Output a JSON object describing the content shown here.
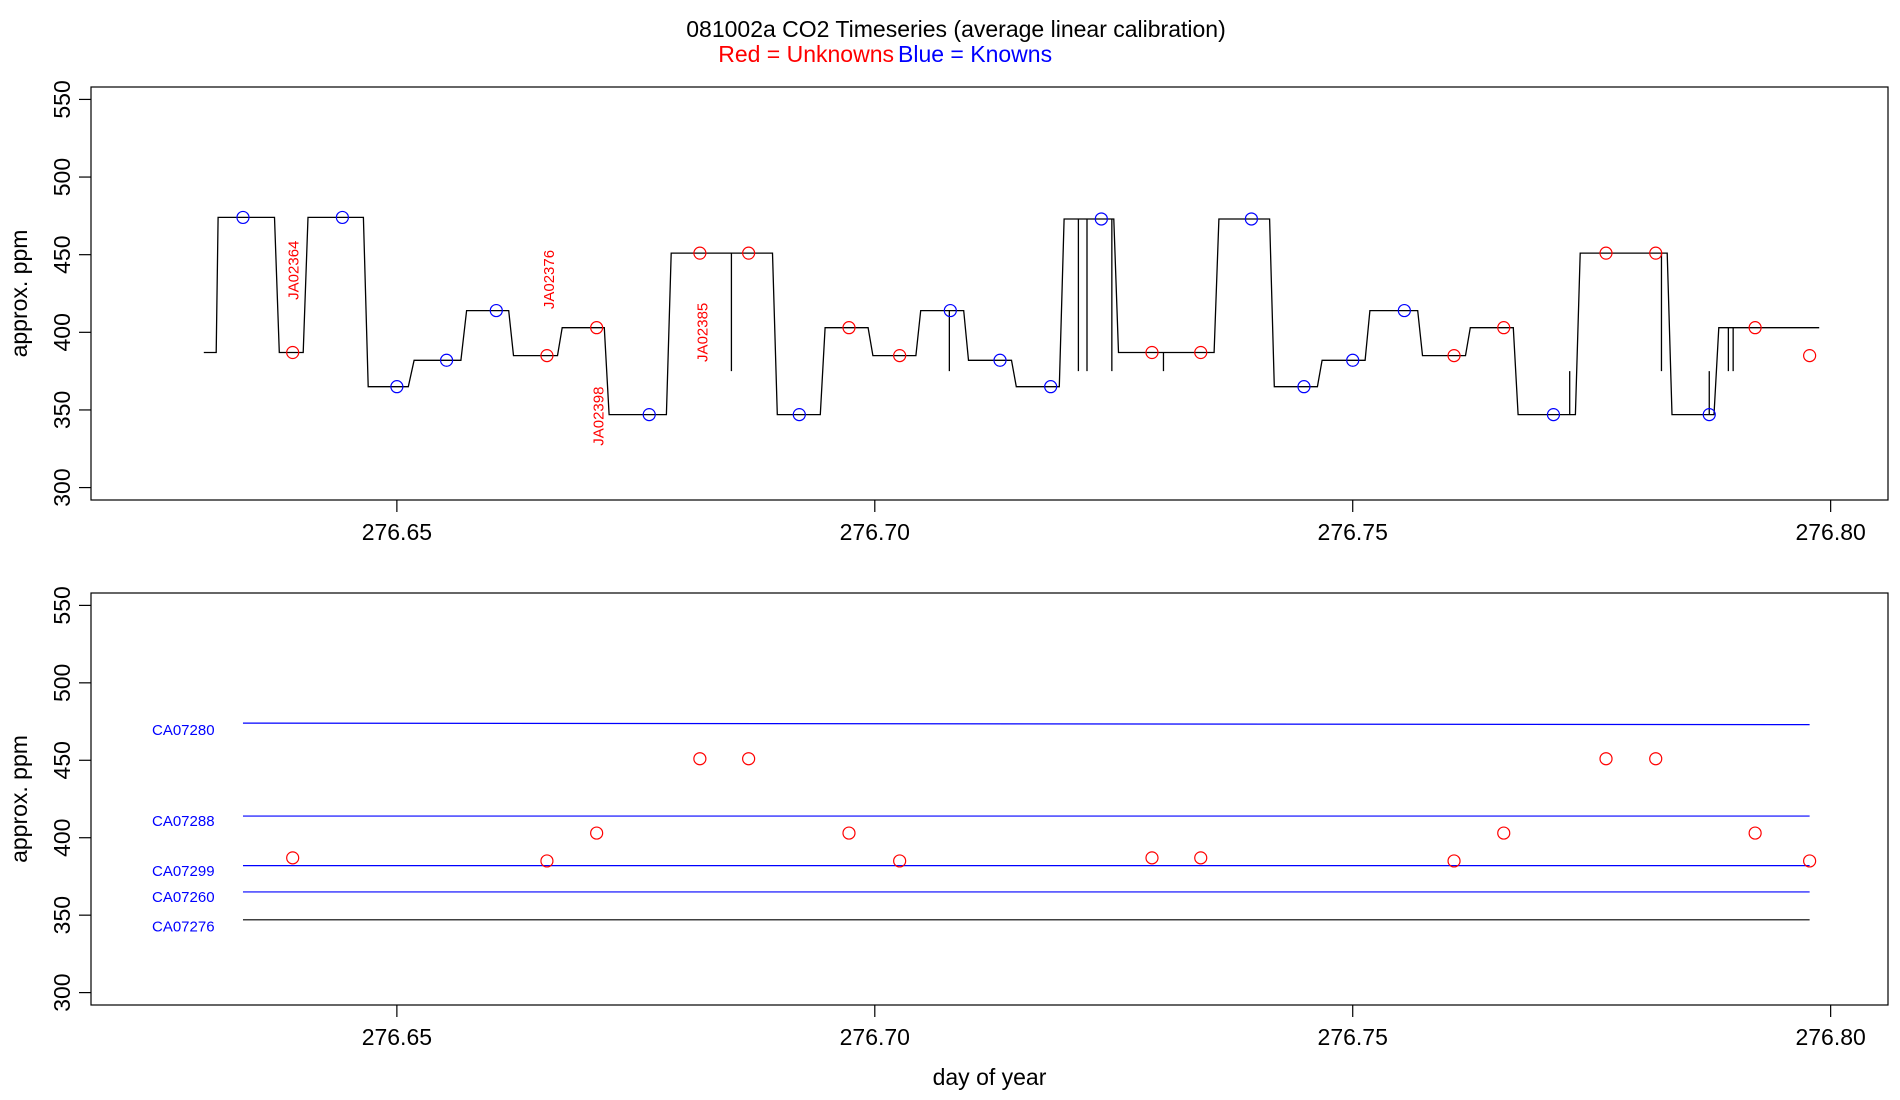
{
  "header": {
    "title": "081002a   CO2 Timeseries (average linear calibration)",
    "legend_red": "Red = Unknowns",
    "legend_blue": "Blue = Knowns",
    "red_color": "#ff0000",
    "blue_color": "#0000ff"
  },
  "chart_data": [
    {
      "type": "line",
      "ylabel": "approx. ppm",
      "xlabel": "",
      "xlim": [
        276.618,
        276.806
      ],
      "ylim": [
        292,
        558
      ],
      "xticks": [
        276.65,
        276.7,
        276.75,
        276.8
      ],
      "xtick_labels": [
        "276.65",
        "276.70",
        "276.75",
        "276.80"
      ],
      "yticks": [
        300,
        350,
        400,
        450,
        500,
        550
      ],
      "ytick_labels": [
        "300",
        "350",
        "400",
        "450",
        "500",
        "550"
      ],
      "trace_color": "#000000",
      "levels": [
        {
          "x0": 276.6298,
          "x1": 276.6311,
          "y": 387
        },
        {
          "x0": 276.6313,
          "x1": 276.6372,
          "y": 474
        },
        {
          "x0": 276.6377,
          "x1": 276.6402,
          "y": 387
        },
        {
          "x0": 276.6407,
          "x1": 276.6465,
          "y": 474
        },
        {
          "x0": 276.647,
          "x1": 276.6512,
          "y": 365
        },
        {
          "x0": 276.6518,
          "x1": 276.6567,
          "y": 382
        },
        {
          "x0": 276.6573,
          "x1": 276.6617,
          "y": 414
        },
        {
          "x0": 276.6622,
          "x1": 276.6668,
          "y": 385
        },
        {
          "x0": 276.6673,
          "x1": 276.6717,
          "y": 403
        },
        {
          "x0": 276.6722,
          "x1": 276.6782,
          "y": 347
        },
        {
          "x0": 276.6787,
          "x1": 276.6893,
          "y": 451
        },
        {
          "x0": 276.6898,
          "x1": 276.6943,
          "y": 347
        },
        {
          "x0": 276.6948,
          "x1": 276.6993,
          "y": 403
        },
        {
          "x0": 276.6998,
          "x1": 276.7043,
          "y": 385
        },
        {
          "x0": 276.7048,
          "x1": 276.7093,
          "y": 414
        },
        {
          "x0": 276.7098,
          "x1": 276.7143,
          "y": 382
        },
        {
          "x0": 276.7148,
          "x1": 276.7193,
          "y": 365
        },
        {
          "x0": 276.7198,
          "x1": 276.725,
          "y": 473
        },
        {
          "x0": 276.7255,
          "x1": 276.7355,
          "y": 387
        },
        {
          "x0": 276.736,
          "x1": 276.7413,
          "y": 473
        },
        {
          "x0": 276.7418,
          "x1": 276.7463,
          "y": 365
        },
        {
          "x0": 276.7468,
          "x1": 276.7513,
          "y": 382
        },
        {
          "x0": 276.7518,
          "x1": 276.7568,
          "y": 414
        },
        {
          "x0": 276.7573,
          "x1": 276.7618,
          "y": 385
        },
        {
          "x0": 276.7623,
          "x1": 276.7668,
          "y": 403
        },
        {
          "x0": 276.7673,
          "x1": 276.7733,
          "y": 347
        },
        {
          "x0": 276.7738,
          "x1": 276.7829,
          "y": 451
        },
        {
          "x0": 276.7834,
          "x1": 276.7878,
          "y": 347
        },
        {
          "x0": 276.7883,
          "x1": 276.7988,
          "y": 403
        }
      ],
      "spikes": [
        {
          "x": 276.685,
          "y0": 451,
          "y1": 375
        },
        {
          "x": 276.7078,
          "y0": 414,
          "y1": 375
        },
        {
          "x": 276.7213,
          "y0": 473,
          "y1": 375
        },
        {
          "x": 276.7222,
          "y0": 473,
          "y1": 375
        },
        {
          "x": 276.7248,
          "y0": 473,
          "y1": 375
        },
        {
          "x": 276.7302,
          "y0": 387,
          "y1": 375
        },
        {
          "x": 276.7727,
          "y0": 347,
          "y1": 375
        },
        {
          "x": 276.7823,
          "y0": 451,
          "y1": 375
        },
        {
          "x": 276.7873,
          "y0": 347,
          "y1": 375
        },
        {
          "x": 276.7893,
          "y0": 403,
          "y1": 375
        },
        {
          "x": 276.7898,
          "y0": 403,
          "y1": 375
        }
      ],
      "unknowns": [
        {
          "x": 276.6391,
          "y": 387
        },
        {
          "x": 276.6657,
          "y": 385
        },
        {
          "x": 276.6709,
          "y": 403
        },
        {
          "x": 276.6817,
          "y": 451
        },
        {
          "x": 276.6868,
          "y": 451
        },
        {
          "x": 276.6973,
          "y": 403
        },
        {
          "x": 276.7026,
          "y": 385
        },
        {
          "x": 276.729,
          "y": 387
        },
        {
          "x": 276.7341,
          "y": 387
        },
        {
          "x": 276.7606,
          "y": 385
        },
        {
          "x": 276.7658,
          "y": 403
        },
        {
          "x": 276.7765,
          "y": 451
        },
        {
          "x": 276.7817,
          "y": 451
        },
        {
          "x": 276.7921,
          "y": 403
        },
        {
          "x": 276.7978,
          "y": 385
        }
      ],
      "knowns": [
        {
          "x": 276.6339,
          "y": 474
        },
        {
          "x": 276.6443,
          "y": 474
        },
        {
          "x": 276.65,
          "y": 365
        },
        {
          "x": 276.6552,
          "y": 382
        },
        {
          "x": 276.6604,
          "y": 414
        },
        {
          "x": 276.6764,
          "y": 347
        },
        {
          "x": 276.6921,
          "y": 347
        },
        {
          "x": 276.7079,
          "y": 414
        },
        {
          "x": 276.7131,
          "y": 382
        },
        {
          "x": 276.7184,
          "y": 365
        },
        {
          "x": 276.7237,
          "y": 473
        },
        {
          "x": 276.7394,
          "y": 473
        },
        {
          "x": 276.7449,
          "y": 365
        },
        {
          "x": 276.75,
          "y": 382
        },
        {
          "x": 276.7554,
          "y": 414
        },
        {
          "x": 276.771,
          "y": 347
        },
        {
          "x": 276.7873,
          "y": 347
        }
      ],
      "annotations": [
        {
          "text": "JA02364",
          "x": 276.6393,
          "y": 440
        },
        {
          "text": "JA02376",
          "x": 276.666,
          "y": 434
        },
        {
          "text": "JA02398",
          "x": 276.6712,
          "y": 346
        },
        {
          "text": "JA02385",
          "x": 276.6821,
          "y": 400
        }
      ]
    },
    {
      "type": "scatter",
      "ylabel": "approx. ppm",
      "xlabel": "day of year",
      "xlim": [
        276.618,
        276.806
      ],
      "ylim": [
        292,
        558
      ],
      "xticks": [
        276.65,
        276.7,
        276.75,
        276.8
      ],
      "xtick_labels": [
        "276.65",
        "276.70",
        "276.75",
        "276.80"
      ],
      "yticks": [
        300,
        350,
        400,
        450,
        500,
        550
      ],
      "ytick_labels": [
        "300",
        "350",
        "400",
        "450",
        "500",
        "550"
      ],
      "reference_lines": [
        {
          "name": "CA07280",
          "x0": 276.6339,
          "x1": 276.7978,
          "y0": 474,
          "y1": 473,
          "color": "#0000ff",
          "label_y": 469
        },
        {
          "name": "CA07288",
          "x0": 276.6339,
          "x1": 276.7978,
          "y0": 414,
          "y1": 414,
          "color": "#0000ff",
          "label_y": 410
        },
        {
          "name": "CA07299",
          "x0": 276.6339,
          "x1": 276.7978,
          "y0": 382,
          "y1": 382,
          "color": "#0000ff",
          "label_y": 378
        },
        {
          "name": "CA07260",
          "x0": 276.6339,
          "x1": 276.7978,
          "y0": 365,
          "y1": 365,
          "color": "#0000ff",
          "label_y": 361
        },
        {
          "name": "CA07276",
          "x0": 276.6339,
          "x1": 276.7978,
          "y0": 347,
          "y1": 347,
          "color": "#000000",
          "label_y": 342
        }
      ],
      "unknowns": [
        {
          "x": 276.6391,
          "y": 387
        },
        {
          "x": 276.6657,
          "y": 385
        },
        {
          "x": 276.6709,
          "y": 403
        },
        {
          "x": 276.6817,
          "y": 451
        },
        {
          "x": 276.6868,
          "y": 451
        },
        {
          "x": 276.6973,
          "y": 403
        },
        {
          "x": 276.7026,
          "y": 385
        },
        {
          "x": 276.729,
          "y": 387
        },
        {
          "x": 276.7341,
          "y": 387
        },
        {
          "x": 276.7606,
          "y": 385
        },
        {
          "x": 276.7658,
          "y": 403
        },
        {
          "x": 276.7765,
          "y": 451
        },
        {
          "x": 276.7817,
          "y": 451
        },
        {
          "x": 276.7921,
          "y": 403
        },
        {
          "x": 276.7978,
          "y": 385
        }
      ]
    }
  ]
}
